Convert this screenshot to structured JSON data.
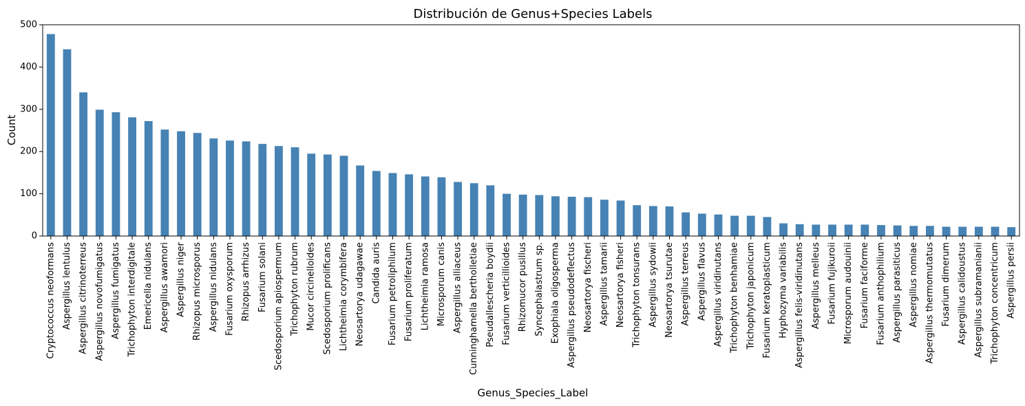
{
  "chart_data": {
    "type": "bar",
    "title": "Distribución de Genus+Species Labels",
    "xlabel": "Genus_Species_Label",
    "ylabel": "Count",
    "ylim": [
      0,
      500
    ],
    "yticks": [
      0,
      100,
      200,
      300,
      400,
      500
    ],
    "grid": false,
    "bar_color": "#4682b4",
    "categories": [
      "Cryptococcus neoformans",
      "Aspergillus lentulus",
      "Aspergillus citrinoterreus",
      "Aspergillus novofumigatus",
      "Aspergillus fumigatus",
      "Trichophyton interdigitale",
      "Emericella nidulans",
      "Aspergillus awamori",
      "Aspergillus niger",
      "Rhizopus microsporus",
      "Aspergillus nidulans",
      "Fusarium oxysporum",
      "Rhizopus arrhizus",
      "Fusarium solani",
      "Scedosporium apiospermum",
      "Trichophyton rubrum",
      "Mucor circinelloides",
      "Scedosporium prolificans",
      "Lichtheimia corymbifera",
      "Neosartorya udagawae",
      "Candida auris",
      "Fusarium petroliphilum",
      "Fusarium proliferatum",
      "Lichtheimia ramosa",
      "Microsporum canis",
      "Aspergillus alliaceus",
      "Cunninghamella bertholletiae",
      "Pseudallescheria boydii",
      "Fusarium verticillioides",
      "Rhizomucor pusillus",
      "Syncephalastrum sp.",
      "Exophiala oligosperma",
      "Aspergillus pseudodeflectus",
      "Neosartorya fischeri",
      "Aspergillus tamarii",
      "Neosartorya fisheri",
      "Trichophyton tonsurans",
      "Aspergillus sydowii",
      "Neosartorya tsurutae",
      "Aspergillus terreus",
      "Aspergillus flavus",
      "Aspergillus viridinutans",
      "Trichophyton benhamiae",
      "Trichophyton japonicum",
      "Fusarium keratoplasticum",
      "Hyphozyma variabilis",
      "Aspergillus felis-viridinutans",
      "Aspergillus melleus",
      "Fusarium fujikuroii",
      "Microsporum audouinii",
      "Fusarium faciforme",
      "Fusarium anthophilium",
      "Aspergillus parasiticus",
      "Aspergillus nomiae",
      "Aspergillus thermomutatus",
      "Fusarium dimerum",
      "Aspergillus calidoustus",
      "Aspergillus subramanianii",
      "Trichophyton concentricum",
      "Aspergillus persii"
    ],
    "values": [
      478,
      442,
      340,
      299,
      293,
      281,
      272,
      252,
      248,
      244,
      231,
      226,
      224,
      218,
      213,
      210,
      195,
      193,
      190,
      167,
      154,
      149,
      146,
      141,
      139,
      128,
      125,
      120,
      100,
      98,
      97,
      94,
      93,
      92,
      86,
      84,
      73,
      71,
      70,
      56,
      53,
      51,
      48,
      48,
      45,
      30,
      28,
      27,
      27,
      27,
      27,
      26,
      25,
      24,
      24,
      22,
      22,
      22,
      22,
      21
    ]
  }
}
